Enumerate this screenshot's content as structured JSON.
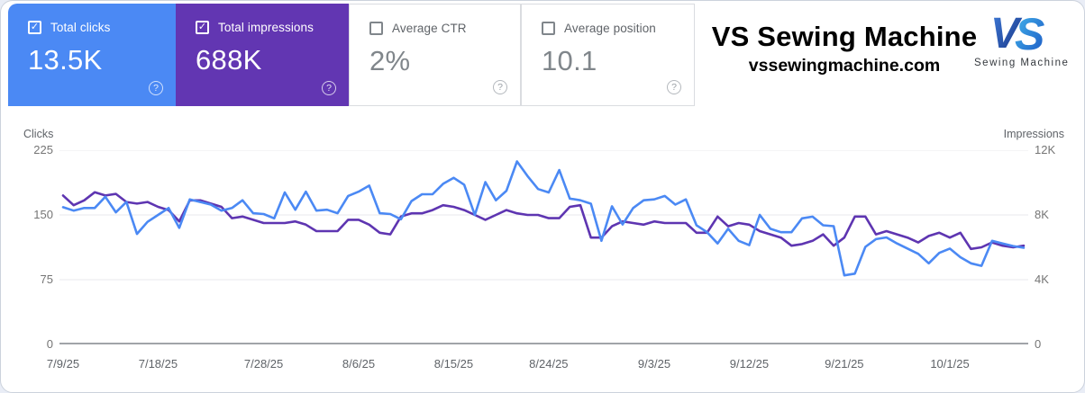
{
  "cards": [
    {
      "label": "Total clicks",
      "value": "13.5K",
      "checked": true,
      "bg": "#4b89f4"
    },
    {
      "label": "Total impressions",
      "value": "688K",
      "checked": true,
      "bg": "#6236b2"
    },
    {
      "label": "Average CTR",
      "value": "2%",
      "checked": false,
      "bg": "#ffffff"
    },
    {
      "label": "Average position",
      "value": "10.1",
      "checked": false,
      "bg": "#ffffff"
    }
  ],
  "help_glyph": "?",
  "check_glyph": "✓",
  "branding": {
    "title": "VS Sewing Machine",
    "domain": "vssewingmachine.com",
    "logo_monogram_v": "V",
    "logo_monogram_s": "S",
    "logo_caption": "Sewing Machine"
  },
  "chart_data": {
    "type": "line",
    "grid": true,
    "y_left": {
      "label": "Clicks",
      "ticks": [
        "225",
        "150",
        "75",
        "0"
      ],
      "max": 225
    },
    "y_right": {
      "label": "Impressions",
      "ticks": [
        "12K",
        "8K",
        "4K",
        "0"
      ],
      "max": 12
    },
    "x_ticks": [
      {
        "label": "7/9/25",
        "day": 0
      },
      {
        "label": "7/18/25",
        "day": 9
      },
      {
        "label": "7/28/25",
        "day": 19
      },
      {
        "label": "8/6/25",
        "day": 28
      },
      {
        "label": "8/15/25",
        "day": 37
      },
      {
        "label": "8/24/25",
        "day": 46
      },
      {
        "label": "9/3/25",
        "day": 56
      },
      {
        "label": "9/12/25",
        "day": 65
      },
      {
        "label": "9/21/25",
        "day": 74
      },
      {
        "label": "10/1/25",
        "day": 84
      }
    ],
    "dates": [
      "7/9/25",
      "7/10/25",
      "7/11/25",
      "7/12/25",
      "7/13/25",
      "7/14/25",
      "7/15/25",
      "7/16/25",
      "7/17/25",
      "7/18/25",
      "7/19/25",
      "7/20/25",
      "7/21/25",
      "7/22/25",
      "7/23/25",
      "7/24/25",
      "7/25/25",
      "7/26/25",
      "7/27/25",
      "7/28/25",
      "7/29/25",
      "7/30/25",
      "7/31/25",
      "8/1/25",
      "8/2/25",
      "8/3/25",
      "8/4/25",
      "8/5/25",
      "8/6/25",
      "8/7/25",
      "8/8/25",
      "8/9/25",
      "8/10/25",
      "8/11/25",
      "8/12/25",
      "8/13/25",
      "8/14/25",
      "8/15/25",
      "8/16/25",
      "8/17/25",
      "8/18/25",
      "8/19/25",
      "8/20/25",
      "8/21/25",
      "8/22/25",
      "8/23/25",
      "8/24/25",
      "8/25/25",
      "8/26/25",
      "8/27/25",
      "8/28/25",
      "8/29/25",
      "8/30/25",
      "8/31/25",
      "9/1/25",
      "9/2/25",
      "9/3/25",
      "9/4/25",
      "9/5/25",
      "9/6/25",
      "9/7/25",
      "9/8/25",
      "9/9/25",
      "9/10/25",
      "9/11/25",
      "9/12/25",
      "9/13/25",
      "9/14/25",
      "9/15/25",
      "9/16/25",
      "9/17/25",
      "9/18/25",
      "9/19/25",
      "9/20/25",
      "9/21/25",
      "9/22/25",
      "9/23/25",
      "9/24/25",
      "9/25/25",
      "9/26/25",
      "9/27/25",
      "9/28/25",
      "9/29/25",
      "9/30/25",
      "10/1/25",
      "10/2/25",
      "10/3/25",
      "10/4/25",
      "10/5/25",
      "10/6/25",
      "10/7/25",
      "10/8/25"
    ],
    "series": [
      {
        "name": "Total clicks",
        "axis": "left",
        "color": "#4b89f4",
        "values": [
          159,
          155,
          158,
          158,
          171,
          153,
          165,
          128,
          142,
          150,
          158,
          135,
          168,
          165,
          162,
          155,
          158,
          167,
          152,
          151,
          146,
          176,
          156,
          177,
          155,
          156,
          152,
          172,
          177,
          184,
          152,
          151,
          145,
          166,
          174,
          174,
          186,
          193,
          185,
          150,
          188,
          167,
          178,
          212,
          195,
          180,
          176,
          202,
          169,
          167,
          163,
          120,
          160,
          139,
          158,
          167,
          168,
          172,
          162,
          168,
          138,
          130,
          117,
          134,
          120,
          115,
          150,
          134,
          130,
          130,
          146,
          148,
          138,
          137,
          80,
          82,
          113,
          122,
          124,
          117,
          111,
          105,
          94,
          106,
          111,
          101,
          94,
          91,
          120,
          117,
          114,
          112
        ]
      },
      {
        "name": "Total impressions",
        "axis": "right",
        "color": "#5e35b1",
        "values": [
          9.2,
          8.6,
          8.9,
          9.4,
          9.2,
          9.3,
          8.8,
          8.7,
          8.8,
          8.5,
          8.3,
          7.6,
          8.9,
          8.9,
          8.7,
          8.5,
          7.8,
          7.9,
          7.7,
          7.5,
          7.5,
          7.5,
          7.6,
          7.4,
          7.0,
          7.0,
          7.0,
          7.7,
          7.7,
          7.4,
          6.9,
          6.8,
          7.9,
          8.1,
          8.1,
          8.3,
          8.6,
          8.5,
          8.3,
          8.0,
          7.7,
          8.0,
          8.3,
          8.1,
          8.0,
          8.0,
          7.8,
          7.8,
          8.5,
          8.6,
          6.6,
          6.6,
          7.3,
          7.6,
          7.5,
          7.4,
          7.6,
          7.5,
          7.5,
          7.5,
          6.9,
          6.9,
          7.9,
          7.3,
          7.5,
          7.4,
          7.0,
          6.8,
          6.6,
          6.1,
          6.2,
          6.4,
          6.8,
          6.1,
          6.6,
          7.9,
          7.9,
          6.8,
          7.0,
          6.8,
          6.6,
          6.3,
          6.7,
          6.9,
          6.6,
          6.9,
          5.9,
          6.0,
          6.3,
          6.1,
          6.0,
          6.1
        ]
      }
    ],
    "grid_color": "#e8eaed",
    "zero_line_color": "#80868b"
  }
}
